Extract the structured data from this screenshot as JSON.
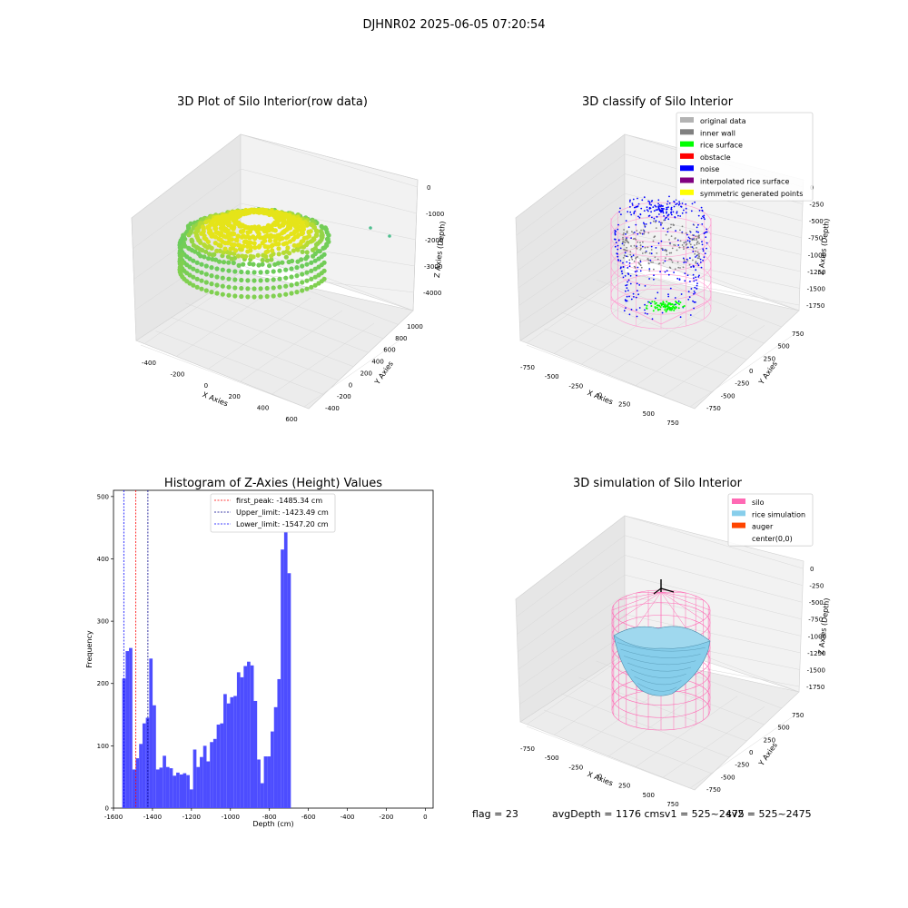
{
  "figure": {
    "suptitle": "DJHNR02 2025-06-05 07:20:54",
    "footer": {
      "flag": "flag = 23",
      "avg_depth": "avgDepth = 1176 cmsv1 = 525~2475",
      "sv2": "sv2 = 525~2475"
    }
  },
  "chart_data": [
    {
      "type": "scatter",
      "projection": "3d",
      "title": "3D Plot of Silo Interior(row data)",
      "xlabel": "X Axies",
      "ylabel": "Y Axies",
      "zlabel": "Z Axies (Depth)",
      "x_ticks": [
        "-400",
        "-200",
        "0",
        "200",
        "400",
        "600"
      ],
      "y_ticks": [
        "-400",
        "-200",
        "0",
        "200",
        "400",
        "600",
        "800",
        "1000"
      ],
      "z_ticks": [
        "0",
        "-1000",
        "-2000",
        "-3000",
        "-4000"
      ],
      "colormap": "viridis",
      "colors": {
        "low": "#5ec962",
        "high": "#e5e419"
      }
    },
    {
      "type": "scatter",
      "projection": "3d",
      "title": "3D classify of Silo Interior",
      "xlabel": "X Axies",
      "ylabel": "Y Axies",
      "zlabel": "Z Axies (Depth)",
      "x_ticks": [
        "-750",
        "-500",
        "-250",
        "0",
        "250",
        "500",
        "750"
      ],
      "y_ticks": [
        "-750",
        "-500",
        "-250",
        "0",
        "250",
        "500",
        "750"
      ],
      "z_ticks": [
        "0",
        "-250",
        "-500",
        "-750",
        "-1000",
        "-1250",
        "-1500",
        "-1750"
      ],
      "legend": [
        {
          "label": "original data",
          "color": "#b3b3b3"
        },
        {
          "label": "inner wall",
          "color": "#808080"
        },
        {
          "label": "rice surface",
          "color": "#00ff00"
        },
        {
          "label": "obstacle",
          "color": "#ff0000"
        },
        {
          "label": "noise",
          "color": "#0000ff"
        },
        {
          "label": "interpolated rice surface",
          "color": "#800080"
        },
        {
          "label": "symmetric generated points",
          "color": "#ffff00"
        }
      ],
      "legend_loc": "upper right"
    },
    {
      "type": "bar",
      "subtype": "histogram",
      "title": "Histogram of Z-Axies (Height) Values",
      "xlabel": "Depth (cm)",
      "ylabel": "Frequency",
      "xlim": [
        -1600,
        40
      ],
      "ylim": [
        0,
        510
      ],
      "x_ticks": [
        -1600,
        -1400,
        -1200,
        -1000,
        -800,
        -600,
        -400,
        -200,
        0
      ],
      "y_ticks": [
        0,
        100,
        200,
        300,
        400,
        500
      ],
      "bar_color": "#4d4dff",
      "bin_start": -1555,
      "bin_width": 17.3,
      "values": [
        208,
        252,
        257,
        62,
        80,
        103,
        136,
        145,
        240,
        165,
        62,
        65,
        84,
        66,
        64,
        52,
        57,
        54,
        56,
        53,
        30,
        94,
        66,
        82,
        100,
        75,
        106,
        111,
        134,
        136,
        183,
        168,
        178,
        180,
        218,
        210,
        228,
        235,
        229,
        172,
        78,
        40,
        83,
        83,
        123,
        162,
        207,
        415,
        484,
        377
      ],
      "vlines": [
        {
          "label": "first_peak: -1485.34 cm",
          "x": -1485.34,
          "color": "#ff0000"
        },
        {
          "label": "Upper_limit: -1423.49 cm",
          "x": -1423.49,
          "color": "#00008b"
        },
        {
          "label": "Lower_limit: -1547.20 cm",
          "x": -1547.2,
          "color": "#0000ff"
        }
      ],
      "legend_loc": "upper center"
    },
    {
      "type": "surface",
      "projection": "3d",
      "title": "3D simulation of Silo Interior",
      "xlabel": "X Axies",
      "ylabel": "Y Axies",
      "zlabel": "Z Axies (Depth)",
      "x_ticks": [
        "-750",
        "-500",
        "-250",
        "0",
        "250",
        "500",
        "750"
      ],
      "y_ticks": [
        "-750",
        "-500",
        "-250",
        "0",
        "250",
        "500",
        "750"
      ],
      "z_ticks": [
        "0",
        "-250",
        "-500",
        "-750",
        "-1000",
        "-1250",
        "-1500",
        "-1750"
      ],
      "legend": [
        {
          "label": "silo",
          "color": "#ff69b4"
        },
        {
          "label": "rice simulation",
          "color": "#87ceeb"
        },
        {
          "label": "auger",
          "color": "#ff4500"
        },
        {
          "label": "center(0,0)",
          "color": "#ffffff"
        }
      ],
      "legend_loc": "upper right"
    }
  ]
}
